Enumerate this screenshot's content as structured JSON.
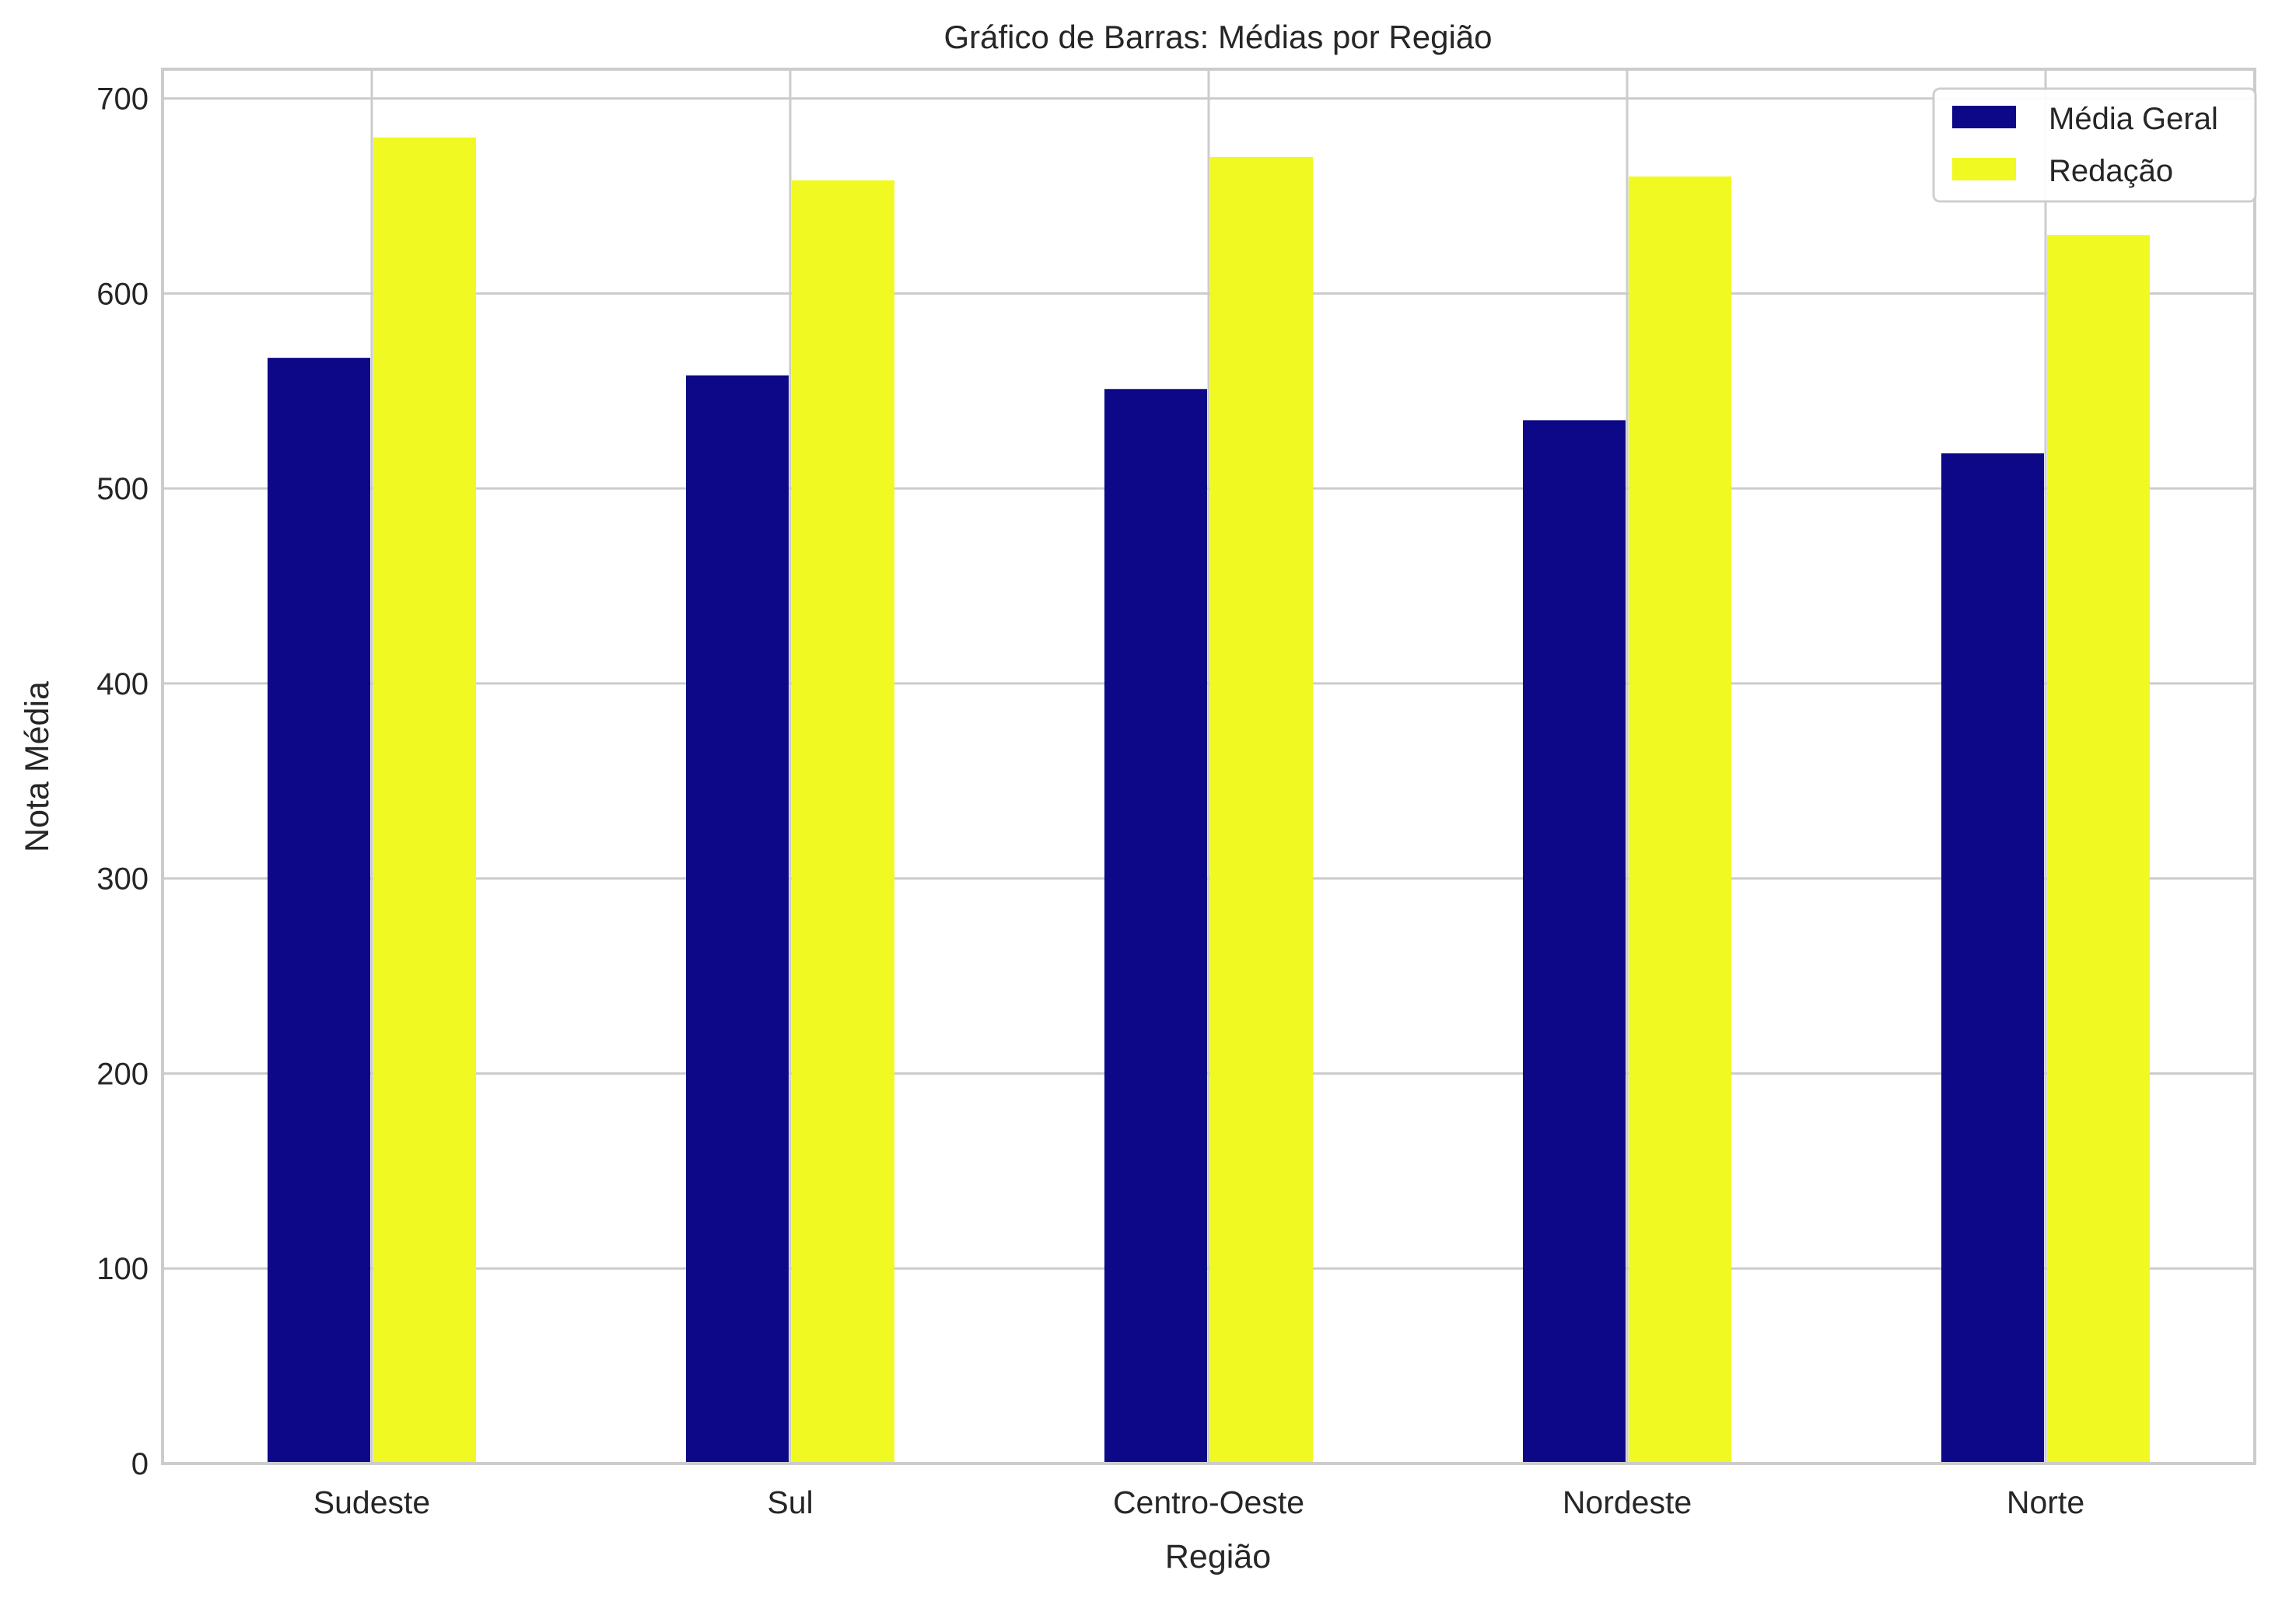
{
  "chart_data": {
    "type": "bar",
    "title": "Gráfico de Barras: Médias por Região",
    "xlabel": "Região",
    "ylabel": "Nota Média",
    "categories": [
      "Sudeste",
      "Sul",
      "Centro-Oeste",
      "Nordeste",
      "Norte"
    ],
    "series": [
      {
        "name": "Média Geral",
        "color": "#0d0887",
        "values": [
          567,
          558,
          551,
          535,
          518
        ]
      },
      {
        "name": "Redação",
        "color": "#f0f921",
        "values": [
          680,
          658,
          670,
          660,
          630
        ]
      }
    ],
    "ylim": [
      0,
      715
    ],
    "yticks": [
      0,
      100,
      200,
      300,
      400,
      500,
      600,
      700
    ],
    "grid": true,
    "legend_position": "top-right"
  }
}
